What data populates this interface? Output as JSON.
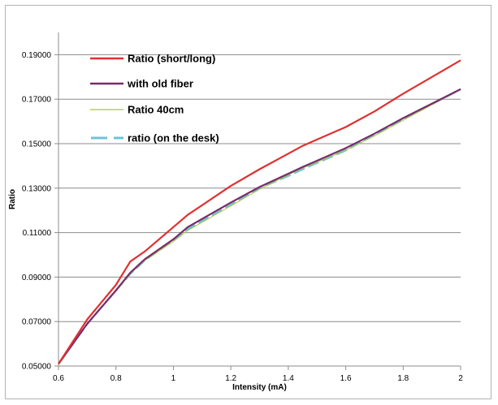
{
  "chart_data": {
    "type": "line",
    "title": "",
    "xlabel": "Intensity (mA)",
    "ylabel": "Ratio",
    "xlim": [
      0.6,
      2
    ],
    "ylim": [
      0.05,
      0.2
    ],
    "x_ticks": [
      0.6,
      0.8,
      1,
      1.2,
      1.4,
      1.6,
      1.8,
      2
    ],
    "x_tick_labels": [
      "0.6",
      "0.8",
      "1",
      "1.2",
      "1.4",
      "1.6",
      "1.8",
      "2"
    ],
    "y_ticks": [
      0.05,
      0.07,
      0.09,
      0.11,
      0.13,
      0.15,
      0.17,
      0.19
    ],
    "y_tick_labels": [
      "0.05000",
      "0.07000",
      "0.09000",
      "0.11000",
      "0.13000",
      "0.15000",
      "0.17000",
      "0.19000"
    ],
    "grid": "horizontal",
    "legend_position": "top-left",
    "series": [
      {
        "name": "Ratio (short/long)",
        "color": "#e03030",
        "style": "solid",
        "x": [
          0.6,
          0.7,
          0.8,
          0.85,
          0.9,
          1.0,
          1.05,
          1.2,
          1.3,
          1.4,
          1.45,
          1.6,
          1.7,
          1.8,
          2.0
        ],
        "y": [
          0.051,
          0.071,
          0.0865,
          0.097,
          0.1015,
          0.1125,
          0.118,
          0.131,
          0.1385,
          0.1455,
          0.149,
          0.1575,
          0.1645,
          0.1725,
          0.1875
        ]
      },
      {
        "name": "with old fiber",
        "color": "#7a2a6e",
        "style": "solid",
        "x": [
          0.6,
          0.7,
          0.8,
          0.85,
          0.9,
          1.0,
          1.05,
          1.2,
          1.3,
          1.4,
          1.45,
          1.6,
          1.7,
          1.8,
          2.0
        ],
        "y": [
          0.051,
          0.069,
          0.084,
          0.092,
          0.098,
          0.107,
          0.1125,
          0.1235,
          0.1305,
          0.1365,
          0.1395,
          0.148,
          0.1545,
          0.1615,
          0.1745
        ]
      },
      {
        "name": "Ratio 40cm",
        "color": "#a8c63a",
        "style": "solid",
        "x": [
          0.6,
          0.7,
          0.8,
          0.85,
          0.9,
          1.0,
          1.05,
          1.2,
          1.3,
          1.4,
          1.45,
          1.6,
          1.7,
          1.8,
          2.0
        ],
        "y": [
          0.0505,
          0.069,
          0.0835,
          0.0915,
          0.0975,
          0.106,
          0.111,
          0.122,
          0.1295,
          0.136,
          0.139,
          0.147,
          0.1535,
          0.1605,
          0.1745
        ]
      },
      {
        "name": "ratio (on the desk)",
        "color": "#6cc4d8",
        "style": "dashed",
        "x": [
          0.6,
          0.7,
          0.8,
          0.85,
          0.9,
          1.0,
          1.05,
          1.2,
          1.3,
          1.4,
          1.45,
          1.6,
          1.7,
          1.8,
          2.0
        ],
        "y": [
          0.051,
          0.069,
          0.084,
          0.0915,
          0.0975,
          0.1065,
          0.1115,
          0.1225,
          0.13,
          0.1355,
          0.1385,
          0.147,
          0.154,
          0.161,
          0.1745
        ]
      }
    ]
  }
}
